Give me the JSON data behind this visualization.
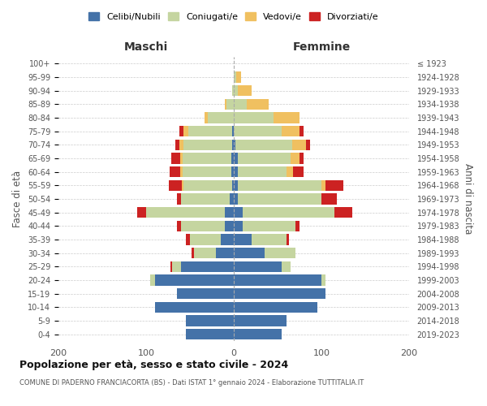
{
  "age_groups": [
    "0-4",
    "5-9",
    "10-14",
    "15-19",
    "20-24",
    "25-29",
    "30-34",
    "35-39",
    "40-44",
    "45-49",
    "50-54",
    "55-59",
    "60-64",
    "65-69",
    "70-74",
    "75-79",
    "80-84",
    "85-89",
    "90-94",
    "95-99",
    "100+"
  ],
  "birth_years": [
    "2019-2023",
    "2014-2018",
    "2009-2013",
    "2004-2008",
    "1999-2003",
    "1994-1998",
    "1989-1993",
    "1984-1988",
    "1979-1983",
    "1974-1978",
    "1969-1973",
    "1964-1968",
    "1959-1963",
    "1954-1958",
    "1949-1953",
    "1944-1948",
    "1939-1943",
    "1934-1938",
    "1929-1933",
    "1924-1928",
    "≤ 1923"
  ],
  "males_celibe": [
    55,
    55,
    90,
    65,
    90,
    60,
    20,
    15,
    10,
    10,
    5,
    2,
    3,
    3,
    2,
    2,
    0,
    0,
    0,
    0,
    0
  ],
  "males_coniugato": [
    0,
    0,
    0,
    0,
    5,
    10,
    25,
    35,
    50,
    90,
    55,
    55,
    55,
    55,
    55,
    50,
    30,
    8,
    2,
    0,
    0
  ],
  "males_vedovo": [
    0,
    0,
    0,
    0,
    0,
    0,
    0,
    0,
    0,
    0,
    0,
    2,
    3,
    3,
    5,
    5,
    3,
    2,
    0,
    0,
    0
  ],
  "males_divorziato": [
    0,
    0,
    0,
    0,
    0,
    2,
    3,
    5,
    5,
    10,
    5,
    15,
    12,
    10,
    5,
    5,
    0,
    0,
    0,
    0,
    0
  ],
  "females_nubile": [
    55,
    60,
    95,
    105,
    100,
    55,
    35,
    20,
    10,
    10,
    5,
    5,
    5,
    5,
    2,
    0,
    0,
    0,
    0,
    0,
    0
  ],
  "females_coniugata": [
    0,
    0,
    0,
    0,
    5,
    10,
    35,
    40,
    60,
    105,
    95,
    95,
    55,
    60,
    65,
    55,
    45,
    15,
    5,
    3,
    0
  ],
  "females_vedova": [
    0,
    0,
    0,
    0,
    0,
    0,
    0,
    0,
    0,
    0,
    0,
    5,
    8,
    10,
    15,
    20,
    30,
    25,
    15,
    5,
    0
  ],
  "females_divorziata": [
    0,
    0,
    0,
    0,
    0,
    0,
    0,
    3,
    5,
    20,
    18,
    20,
    12,
    5,
    5,
    5,
    0,
    0,
    0,
    0,
    0
  ],
  "colors": {
    "celibe_nubile": "#4472a8",
    "coniugato": "#c5d5a0",
    "vedovo": "#f0c060",
    "divorziato": "#cc2222"
  },
  "title": "Popolazione per età, sesso e stato civile - 2024",
  "subtitle": "COMUNE DI PADERNO FRANCIACORTA (BS) - Dati ISTAT 1° gennaio 2024 - Elaborazione TUTTITALIA.IT",
  "xlabel_left": "Maschi",
  "xlabel_right": "Femmine",
  "ylabel_left": "Fasce di età",
  "ylabel_right": "Anni di nascita",
  "xlim": 200,
  "legend_labels": [
    "Celibi/Nubili",
    "Coniugati/e",
    "Vedovi/e",
    "Divorziati/e"
  ],
  "bg_color": "#ffffff",
  "grid_color": "#cccccc"
}
